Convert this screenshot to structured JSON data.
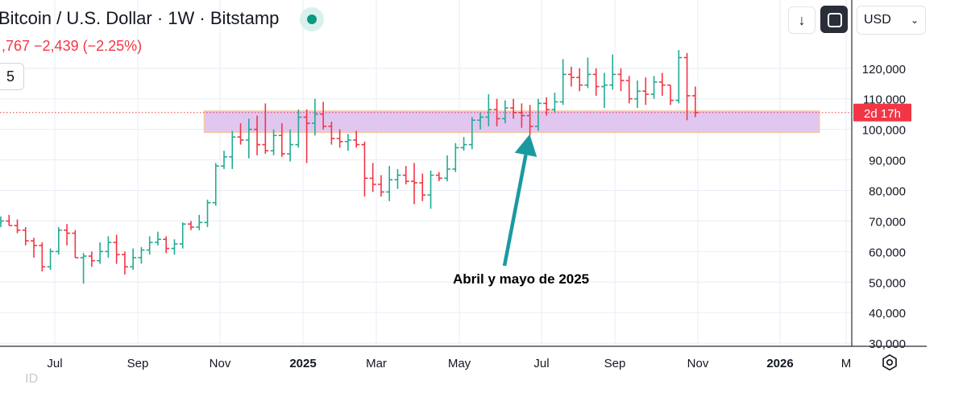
{
  "header": {
    "title": "Bitcoin / U.S. Dollar · 1W · Bitstamp",
    "values": ",767  −2,439 (−2.25%)",
    "interval_box": "5",
    "down_button": "↓",
    "currency": "USD"
  },
  "annotation": {
    "text": "Abril y mayo de 2025"
  },
  "price_tag": {
    "countdown": "2d 17h"
  },
  "bottom_ghost": "       ID",
  "colors": {
    "up": "#22ab94",
    "down": "#f23645",
    "zone_fill": "#e1c6ef",
    "zone_border": "#f5c8a8",
    "arrow": "#1a9aa0",
    "grid": "#e6eef5"
  },
  "chart_data": {
    "type": "ohlc",
    "symbol": "Bitcoin / U.S. Dollar",
    "interval": "1W",
    "exchange": "Bitstamp",
    "x_ticks": [
      "Jul",
      "Sep",
      "Nov",
      "2025",
      "Mar",
      "May",
      "Jul",
      "Sep",
      "Nov",
      "2026",
      "M"
    ],
    "y_ticks": [
      "30,000",
      "40,000",
      "50,000",
      "60,000",
      "70,000",
      "80,000",
      "90,000",
      "100,000",
      "110,000",
      "120,000"
    ],
    "y_tick_values": [
      30000,
      40000,
      50000,
      60000,
      70000,
      80000,
      90000,
      100000,
      110000,
      120000
    ],
    "ylim": [
      29500,
      129700
    ],
    "last_price": 105500,
    "zone": [
      99000,
      106000
    ],
    "zone_start_bar": 25,
    "zone_end_bar": 99,
    "annotation_target_bar": 63,
    "bars": [
      [
        69500,
        71500,
        68000,
        70000
      ],
      [
        70000,
        72000,
        68500,
        68500
      ],
      [
        68500,
        70500,
        66000,
        67000
      ],
      [
        67000,
        68000,
        62000,
        63500
      ],
      [
        63500,
        64500,
        58000,
        62000
      ],
      [
        62000,
        63000,
        53500,
        55000
      ],
      [
        55000,
        61000,
        54000,
        60000
      ],
      [
        60000,
        68000,
        59000,
        67000
      ],
      [
        67000,
        69000,
        62000,
        66000
      ],
      [
        66000,
        67000,
        58000,
        58000
      ],
      [
        58000,
        59500,
        49500,
        58500
      ],
      [
        58500,
        60000,
        55000,
        57000
      ],
      [
        57000,
        63000,
        56000,
        60000
      ],
      [
        60000,
        65000,
        58000,
        63000
      ],
      [
        63000,
        65500,
        56000,
        59000
      ],
      [
        59000,
        60000,
        52500,
        55000
      ],
      [
        55000,
        61000,
        54000,
        58000
      ],
      [
        58000,
        61500,
        56000,
        60500
      ],
      [
        60500,
        65000,
        59000,
        63000
      ],
      [
        63000,
        66500,
        62000,
        64000
      ],
      [
        64000,
        65000,
        59500,
        61000
      ],
      [
        61000,
        64000,
        59000,
        62500
      ],
      [
        62500,
        69500,
        61000,
        69000
      ],
      [
        69000,
        70000,
        67000,
        68000
      ],
      [
        68000,
        72000,
        67000,
        69500
      ],
      [
        69500,
        77000,
        68000,
        76000
      ],
      [
        76000,
        89000,
        75000,
        88000
      ],
      [
        88000,
        93000,
        87000,
        91000
      ],
      [
        91000,
        99500,
        87000,
        97500
      ],
      [
        97500,
        102000,
        95000,
        96500
      ],
      [
        96500,
        103500,
        90500,
        100000
      ],
      [
        100000,
        104500,
        91500,
        95000
      ],
      [
        95000,
        108500,
        92000,
        93000
      ],
      [
        93000,
        100000,
        91500,
        98000
      ],
      [
        98000,
        102000,
        91000,
        92000
      ],
      [
        92000,
        100000,
        89500,
        95000
      ],
      [
        95000,
        106500,
        94000,
        104000
      ],
      [
        104000,
        106500,
        89000,
        102000
      ],
      [
        102000,
        110000,
        98000,
        105000
      ],
      [
        105000,
        109000,
        100000,
        101000
      ],
      [
        101000,
        102500,
        95000,
        97000
      ],
      [
        97000,
        100000,
        94000,
        96000
      ],
      [
        96000,
        98500,
        93000,
        96500
      ],
      [
        96500,
        99500,
        94000,
        95000
      ],
      [
        95000,
        96000,
        78000,
        84000
      ],
      [
        84000,
        89000,
        79500,
        82000
      ],
      [
        82000,
        85000,
        78000,
        79500
      ],
      [
        79500,
        88000,
        76500,
        83500
      ],
      [
        83500,
        87000,
        80500,
        85000
      ],
      [
        85000,
        88000,
        82000,
        83000
      ],
      [
        83000,
        89000,
        75500,
        82500
      ],
      [
        82500,
        85500,
        76500,
        78500
      ],
      [
        78500,
        86500,
        74000,
        85000
      ],
      [
        85000,
        86000,
        83000,
        84000
      ],
      [
        84000,
        91500,
        83000,
        87000
      ],
      [
        87000,
        95500,
        86000,
        94000
      ],
      [
        94000,
        97500,
        93000,
        95000
      ],
      [
        95000,
        104000,
        93500,
        103000
      ],
      [
        103000,
        105500,
        100000,
        104000
      ],
      [
        104000,
        111500,
        101000,
        106500
      ],
      [
        106500,
        110000,
        101000,
        103500
      ],
      [
        103500,
        109500,
        102000,
        107000
      ],
      [
        107000,
        110000,
        103500,
        105500
      ],
      [
        105500,
        108500,
        100500,
        104500
      ],
      [
        104500,
        108000,
        98000,
        101000
      ],
      [
        101000,
        110000,
        99500,
        108500
      ],
      [
        108500,
        110500,
        104500,
        106500
      ],
      [
        106500,
        112000,
        105500,
        109000
      ],
      [
        109000,
        123000,
        108000,
        118000
      ],
      [
        118000,
        120500,
        114000,
        117000
      ],
      [
        117000,
        120000,
        112500,
        114500
      ],
      [
        114500,
        123500,
        113500,
        118000
      ],
      [
        118000,
        120000,
        111000,
        114000
      ],
      [
        114000,
        118500,
        107000,
        114500
      ],
      [
        114500,
        124500,
        113000,
        118000
      ],
      [
        118000,
        120000,
        112500,
        116000
      ],
      [
        116000,
        117500,
        108500,
        110000
      ],
      [
        110000,
        116000,
        107000,
        112500
      ],
      [
        112500,
        117000,
        108000,
        111500
      ],
      [
        111500,
        117500,
        110000,
        115500
      ],
      [
        115500,
        118500,
        111000,
        114500
      ],
      [
        114500,
        114500,
        108000,
        109500
      ],
      [
        109500,
        126000,
        108500,
        123500
      ],
      [
        123500,
        125000,
        103000,
        111000
      ],
      [
        111000,
        114000,
        104000,
        105500
      ]
    ]
  }
}
